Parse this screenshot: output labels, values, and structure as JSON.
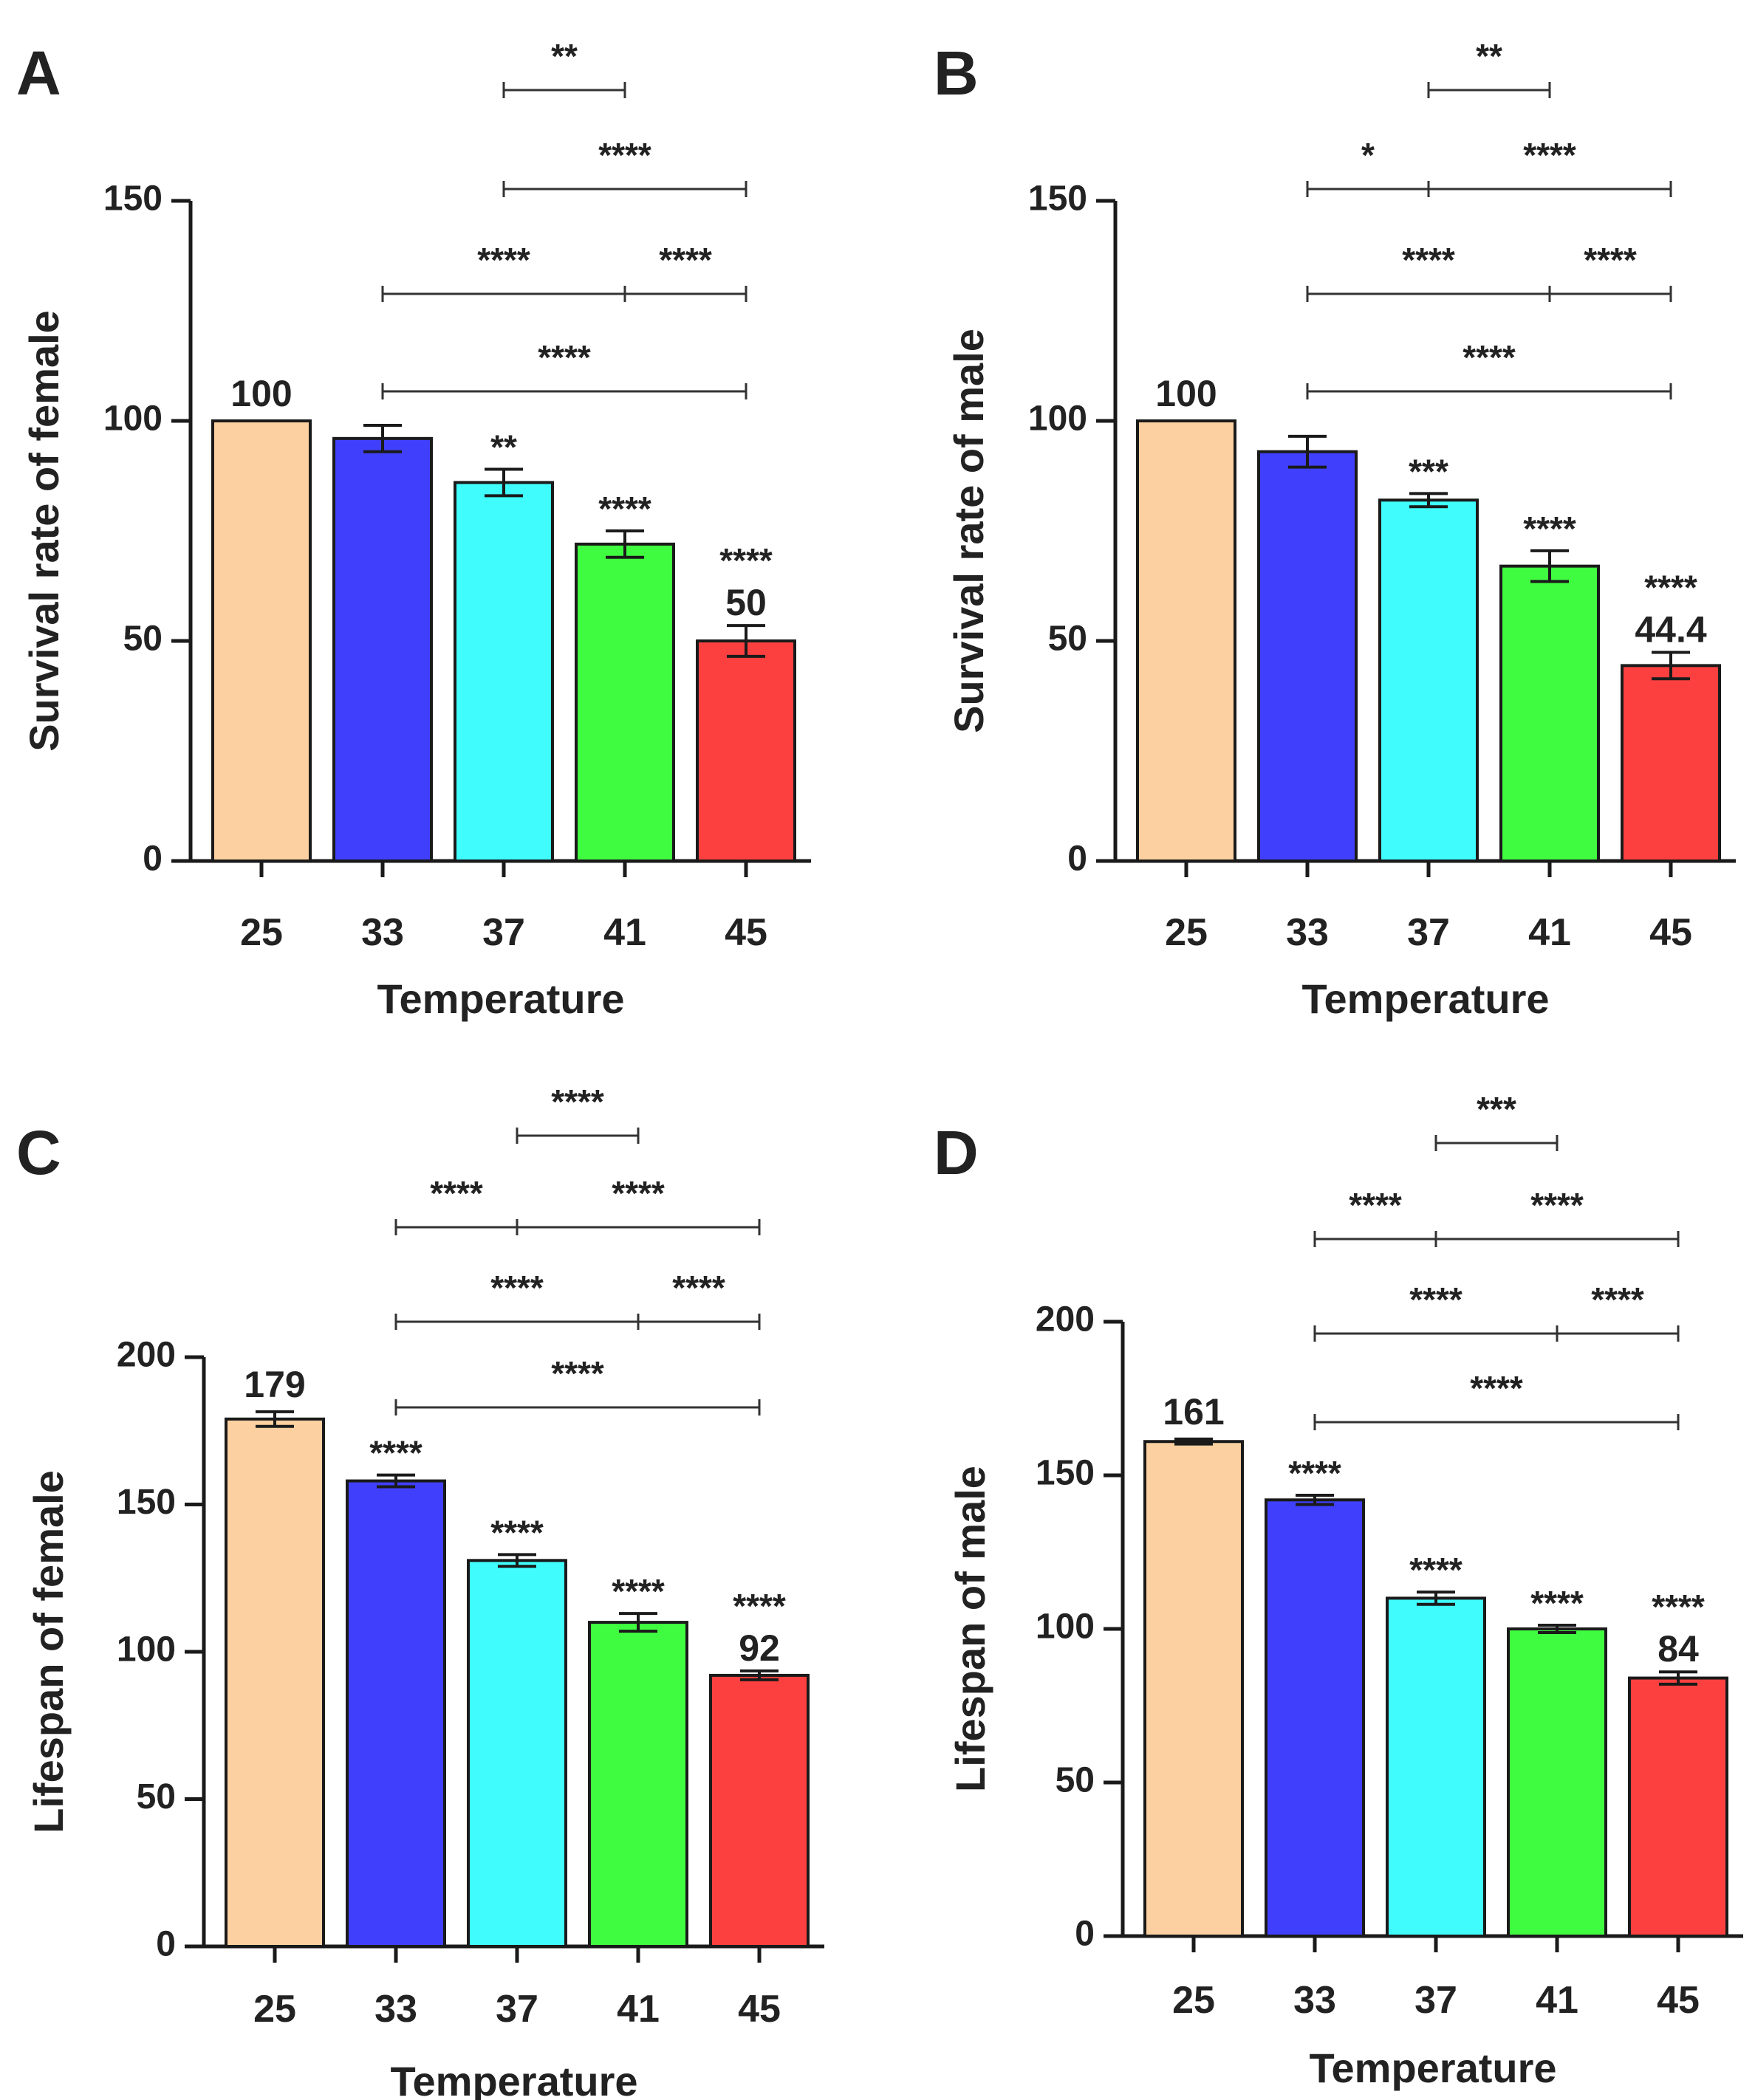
{
  "chart_data": [
    {
      "id": "A",
      "type": "bar",
      "panel_label": "A",
      "title": "",
      "xlabel": "Temperature",
      "ylabel": "Survival rate of female",
      "categories": [
        "25",
        "33",
        "37",
        "41",
        "45"
      ],
      "values": [
        100,
        96,
        86,
        72,
        50
      ],
      "errors": [
        0,
        3,
        3,
        3,
        3.5
      ],
      "value_labels": [
        "100",
        "",
        "",
        "",
        "50"
      ],
      "bar_stars": [
        "",
        "",
        "**",
        "****",
        "****"
      ],
      "yticks": [
        0,
        50,
        100,
        150
      ],
      "ytick_labels": [
        "0",
        "50",
        "100",
        "150"
      ],
      "ylim": [
        0,
        150
      ],
      "colors": [
        "#fcd0a0",
        "#4040fc",
        "#40fcfc",
        "#40fc40",
        "#fc4040"
      ],
      "comparisons": [
        {
          "from": 1,
          "to": 4,
          "label": "****"
        },
        {
          "from": 1,
          "to": 4,
          "mid": 3,
          "labels": [
            "****",
            "****"
          ]
        },
        {
          "from": 2,
          "to": 4,
          "label": "****"
        },
        {
          "from": 2,
          "to": 3,
          "label": "**"
        }
      ]
    },
    {
      "id": "B",
      "type": "bar",
      "panel_label": "B",
      "title": "",
      "xlabel": "Temperature",
      "ylabel": "Survival rate of male",
      "categories": [
        "25",
        "33",
        "37",
        "41",
        "45"
      ],
      "values": [
        100,
        93,
        82,
        67,
        44.4
      ],
      "errors": [
        0,
        3.5,
        1.5,
        3.5,
        3
      ],
      "value_labels": [
        "100",
        "",
        "",
        "",
        "44.4"
      ],
      "bar_stars": [
        "",
        "",
        "***",
        "****",
        "****"
      ],
      "yticks": [
        0,
        50,
        100,
        150
      ],
      "ytick_labels": [
        "0",
        "50",
        "100",
        "150"
      ],
      "ylim": [
        0,
        150
      ],
      "colors": [
        "#fcd0a0",
        "#4040fc",
        "#40fcfc",
        "#40fc40",
        "#fc4040"
      ],
      "comparisons": [
        {
          "from": 1,
          "to": 4,
          "label": "****"
        },
        {
          "from": 1,
          "to": 4,
          "mid": 3,
          "labels": [
            "****",
            "****"
          ]
        },
        {
          "from": 1,
          "to": 4,
          "mid": 2,
          "labels": [
            "*",
            "****"
          ]
        },
        {
          "from": 2,
          "to": 3,
          "label": "**"
        }
      ]
    },
    {
      "id": "C",
      "type": "bar",
      "panel_label": "C",
      "title": "",
      "xlabel": "Temperature",
      "ylabel": "Lifespan of female",
      "categories": [
        "25",
        "33",
        "37",
        "41",
        "45"
      ],
      "values": [
        179,
        158,
        131,
        110,
        92
      ],
      "errors": [
        2.5,
        2,
        2,
        3,
        1.5
      ],
      "value_labels": [
        "179",
        "",
        "",
        "",
        "92"
      ],
      "bar_stars": [
        "",
        "****",
        "****",
        "****",
        "****"
      ],
      "yticks": [
        0,
        50,
        100,
        150,
        200
      ],
      "ytick_labels": [
        "0",
        "50",
        "100",
        "150",
        "200"
      ],
      "ylim": [
        0,
        200
      ],
      "colors": [
        "#fcd0a0",
        "#4040fc",
        "#40fcfc",
        "#40fc40",
        "#fc4040"
      ],
      "comparisons": [
        {
          "from": 1,
          "to": 4,
          "label": "****"
        },
        {
          "from": 1,
          "to": 4,
          "mid": 3,
          "labels": [
            "****",
            "****"
          ]
        },
        {
          "from": 1,
          "to": 4,
          "mid": 2,
          "labels": [
            "****",
            "****"
          ]
        },
        {
          "from": 2,
          "to": 3,
          "label": "****"
        }
      ]
    },
    {
      "id": "D",
      "type": "bar",
      "panel_label": "D",
      "title": "",
      "xlabel": "Temperature",
      "ylabel": "Lifespan of male",
      "categories": [
        "25",
        "33",
        "37",
        "41",
        "45"
      ],
      "values": [
        161,
        142,
        110,
        100,
        84
      ],
      "errors": [
        0.8,
        1.5,
        2,
        1.2,
        2
      ],
      "value_labels": [
        "161",
        "",
        "",
        "",
        "84"
      ],
      "bar_stars": [
        "",
        "****",
        "****",
        "****",
        "****"
      ],
      "yticks": [
        0,
        50,
        100,
        150,
        200
      ],
      "ytick_labels": [
        "0",
        "50",
        "100",
        "150",
        "200"
      ],
      "ylim": [
        0,
        200
      ],
      "colors": [
        "#fcd0a0",
        "#4040fc",
        "#40fcfc",
        "#40fc40",
        "#fc4040"
      ],
      "comparisons": [
        {
          "from": 1,
          "to": 4,
          "label": "****"
        },
        {
          "from": 1,
          "to": 4,
          "mid": 3,
          "labels": [
            "****",
            "****"
          ]
        },
        {
          "from": 1,
          "to": 4,
          "mid": 2,
          "labels": [
            "****",
            "****"
          ]
        },
        {
          "from": 2,
          "to": 3,
          "label": "***"
        }
      ]
    }
  ]
}
